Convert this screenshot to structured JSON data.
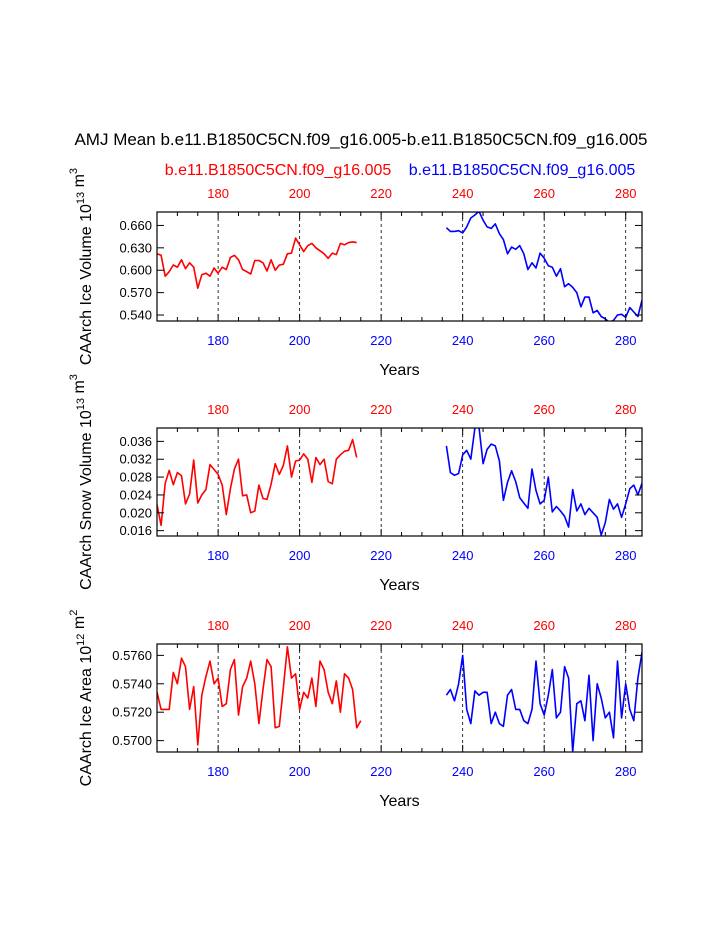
{
  "title": "AMJ Mean b.e11.B1850C5CN.f09_g16.005-b.e11.B1850C5CN.f09_g16.005",
  "legend": {
    "left": {
      "text": "b.e11.B1850C5CN.f09_g16.005",
      "color": "#ff0000"
    },
    "right": {
      "text": "b.e11.B1850C5CN.f09_g16.005",
      "color": "#0000ff"
    }
  },
  "colors": {
    "series1": "#ff0000",
    "series2": "#0000ff",
    "axis": "#000000",
    "refline": "#000000"
  },
  "chart_data": [
    {
      "type": "line",
      "ylabel": "CAArch Ice Volume 10^13 m^3",
      "xlabel": "Years",
      "xlim": [
        165,
        284
      ],
      "ylim": [
        0.532,
        0.678
      ],
      "yticks": [
        "0.540",
        "0.570",
        "0.600",
        "0.630",
        "0.660"
      ],
      "top_ticks": [
        "180",
        "200",
        "220",
        "240",
        "260",
        "280"
      ],
      "bottom_ticks": [
        "180",
        "200",
        "220",
        "240",
        "260",
        "280"
      ],
      "ref_lines": [
        180,
        200,
        220,
        240,
        260,
        280
      ],
      "series": [
        {
          "x_start": 165,
          "values": [
            0.622,
            0.62,
            0.592,
            0.598,
            0.607,
            0.604,
            0.614,
            0.602,
            0.61,
            0.604,
            0.576,
            0.594,
            0.596,
            0.592,
            0.603,
            0.596,
            0.604,
            0.601,
            0.617,
            0.62,
            0.614,
            0.601,
            0.598,
            0.595,
            0.613,
            0.613,
            0.61,
            0.599,
            0.614,
            0.6,
            0.607,
            0.608,
            0.622,
            0.623,
            0.643,
            0.634,
            0.625,
            0.633,
            0.636,
            0.63,
            0.626,
            0.622,
            0.616,
            0.623,
            0.621,
            0.636,
            0.634,
            0.637,
            0.638,
            0.637
          ]
        },
        {
          "x_start": 236,
          "values": [
            0.657,
            0.652,
            0.652,
            0.653,
            0.65,
            0.658,
            0.67,
            0.674,
            0.679,
            0.667,
            0.658,
            0.656,
            0.662,
            0.649,
            0.641,
            0.622,
            0.631,
            0.628,
            0.633,
            0.622,
            0.601,
            0.61,
            0.603,
            0.623,
            0.616,
            0.606,
            0.604,
            0.592,
            0.602,
            0.578,
            0.582,
            0.577,
            0.57,
            0.551,
            0.564,
            0.564,
            0.543,
            0.546,
            0.538,
            0.535,
            0.53,
            0.533,
            0.54,
            0.541,
            0.537,
            0.55,
            0.544,
            0.538,
            0.56
          ]
        }
      ]
    },
    {
      "type": "line",
      "ylabel": "CAArch Snow Volume 10^13 m^3",
      "xlabel": "Years",
      "xlim": [
        165,
        284
      ],
      "ylim": [
        0.0148,
        0.039
      ],
      "yticks": [
        "0.016",
        "0.020",
        "0.024",
        "0.028",
        "0.032",
        "0.036"
      ],
      "top_ticks": [
        "180",
        "200",
        "220",
        "240",
        "260",
        "280"
      ],
      "bottom_ticks": [
        "180",
        "200",
        "220",
        "240",
        "260",
        "280"
      ],
      "ref_lines": [
        180,
        200,
        220,
        240,
        260,
        280
      ],
      "series": [
        {
          "x_start": 165,
          "values": [
            0.0218,
            0.0172,
            0.0266,
            0.0295,
            0.0263,
            0.029,
            0.0283,
            0.022,
            0.0242,
            0.0318,
            0.0222,
            0.024,
            0.0252,
            0.0308,
            0.0297,
            0.0286,
            0.0262,
            0.0196,
            0.0254,
            0.0298,
            0.032,
            0.0238,
            0.024,
            0.02,
            0.0204,
            0.0262,
            0.0232,
            0.023,
            0.0264,
            0.031,
            0.0286,
            0.0306,
            0.035,
            0.028,
            0.0316,
            0.0318,
            0.0332,
            0.032,
            0.0268,
            0.0324,
            0.0308,
            0.032,
            0.027,
            0.0265,
            0.032,
            0.033,
            0.0338,
            0.034,
            0.0364,
            0.0324
          ]
        },
        {
          "x_start": 236,
          "values": [
            0.035,
            0.029,
            0.0284,
            0.0288,
            0.033,
            0.034,
            0.032,
            0.039,
            0.0392,
            0.031,
            0.0342,
            0.0354,
            0.035,
            0.0316,
            0.0228,
            0.0268,
            0.0294,
            0.027,
            0.0234,
            0.0222,
            0.021,
            0.0298,
            0.025,
            0.022,
            0.0228,
            0.028,
            0.0202,
            0.0214,
            0.0204,
            0.0192,
            0.0168,
            0.0252,
            0.0204,
            0.022,
            0.0196,
            0.021,
            0.02,
            0.019,
            0.015,
            0.0178,
            0.023,
            0.0208,
            0.022,
            0.019,
            0.022,
            0.0254,
            0.0262,
            0.024,
            0.0266
          ]
        }
      ]
    },
    {
      "type": "line",
      "ylabel": "CAArch Ice Area 10^12 m^2",
      "xlabel": "Years",
      "xlim": [
        165,
        284
      ],
      "ylim": [
        0.5692,
        0.5768
      ],
      "yticks": [
        "0.5700",
        "0.5720",
        "0.5740",
        "0.5760"
      ],
      "top_ticks": [
        "180",
        "200",
        "220",
        "240",
        "260",
        "280"
      ],
      "bottom_ticks": [
        "180",
        "200",
        "220",
        "240",
        "260",
        "280"
      ],
      "ref_lines": [
        180,
        200,
        220,
        240,
        260,
        280
      ],
      "series": [
        {
          "x_start": 165,
          "values": [
            0.5734,
            0.5722,
            0.5722,
            0.5722,
            0.5748,
            0.574,
            0.5758,
            0.5752,
            0.5722,
            0.5738,
            0.5697,
            0.5732,
            0.5745,
            0.5756,
            0.574,
            0.5744,
            0.5724,
            0.5726,
            0.575,
            0.5757,
            0.5718,
            0.5738,
            0.5744,
            0.5756,
            0.574,
            0.5712,
            0.5736,
            0.5757,
            0.5752,
            0.5709,
            0.571,
            0.5737,
            0.5766,
            0.5744,
            0.5747,
            0.5722,
            0.5734,
            0.573,
            0.5744,
            0.5724,
            0.5756,
            0.575,
            0.5734,
            0.5726,
            0.5742,
            0.572,
            0.5747,
            0.5744,
            0.5736,
            0.5709,
            0.5714
          ]
        },
        {
          "x_start": 236,
          "values": [
            0.5732,
            0.5736,
            0.5728,
            0.574,
            0.576,
            0.5722,
            0.5712,
            0.5735,
            0.5732,
            0.5734,
            0.5734,
            0.5712,
            0.572,
            0.5712,
            0.571,
            0.5732,
            0.5736,
            0.5722,
            0.5722,
            0.5714,
            0.5712,
            0.5722,
            0.5756,
            0.5726,
            0.5718,
            0.5732,
            0.575,
            0.5716,
            0.572,
            0.5752,
            0.5744,
            0.5692,
            0.5726,
            0.5728,
            0.5714,
            0.5746,
            0.57,
            0.574,
            0.573,
            0.5716,
            0.572,
            0.5702,
            0.5756,
            0.5716,
            0.574,
            0.5722,
            0.5714,
            0.5744,
            0.5762,
            0.574
          ]
        }
      ]
    }
  ]
}
